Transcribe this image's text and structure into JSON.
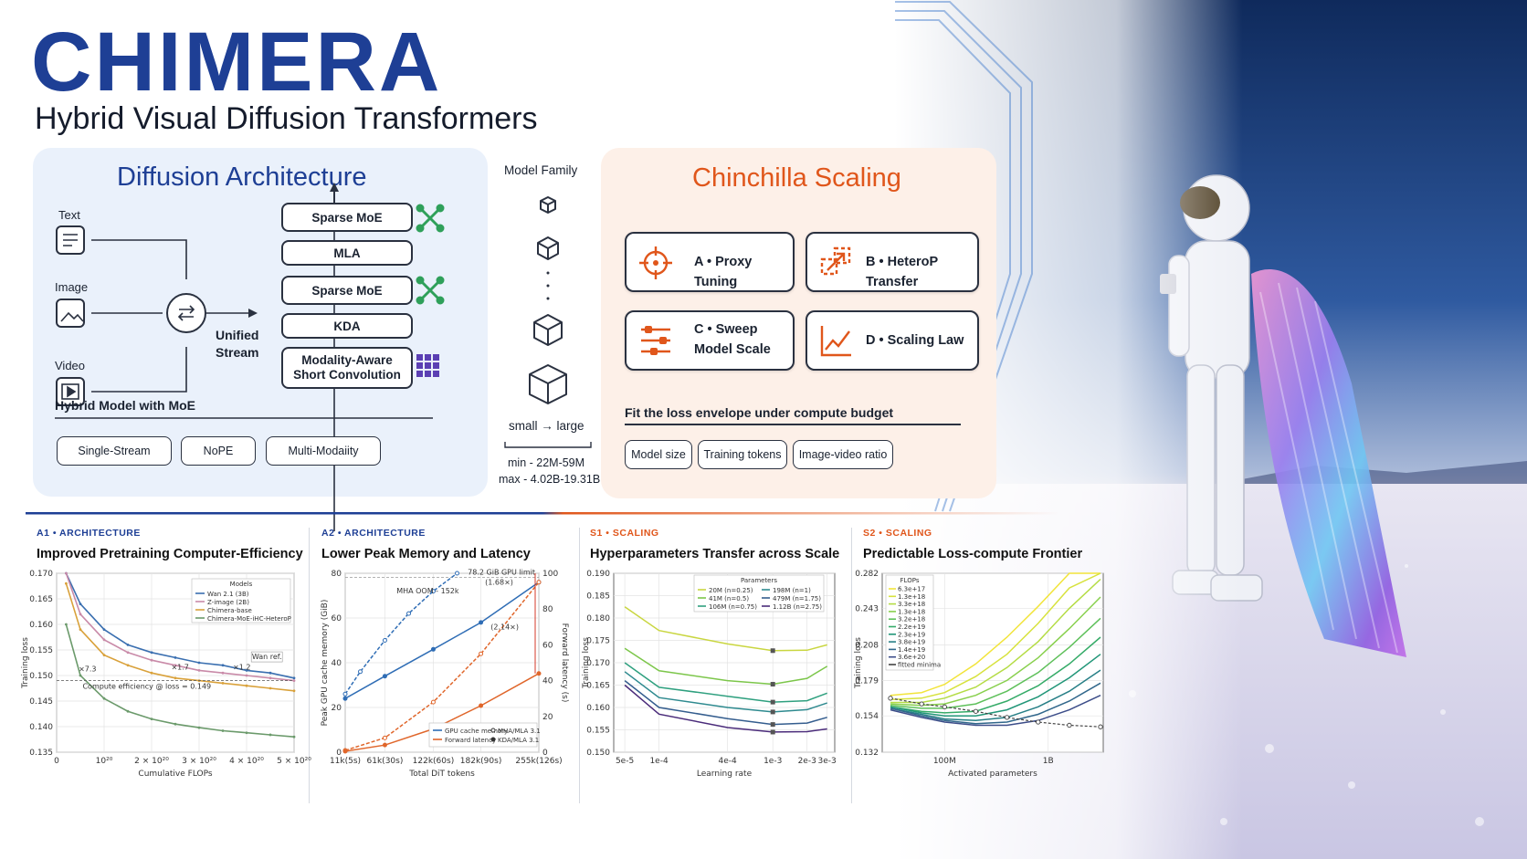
{
  "header": {
    "title": "CHIMERA",
    "subtitle": "Hybrid Visual Diffusion Transformers"
  },
  "architecture": {
    "title": "Diffusion Architecture",
    "inputs": [
      "Text",
      "Image",
      "Video"
    ],
    "stream_label_1": "Unified",
    "stream_label_2": "Stream",
    "blocks": [
      "Sparse MoE",
      "MLA",
      "Sparse MoE",
      "KDA",
      "Modality-Aware",
      "Short Convolution"
    ],
    "caption": "Hybrid Model with MoE",
    "tags": [
      "Single-Stream",
      "NoPE",
      "Multi-Modaiity"
    ]
  },
  "model_family": {
    "label": "Model Family",
    "range": "small → large",
    "min": "min - 22M-59M",
    "max": "max - 4.02B-19.31B"
  },
  "chinchilla": {
    "title": "Chinchilla Scaling",
    "steps": [
      {
        "line1": "A • Proxy Tuning",
        "line2": ""
      },
      {
        "line1": "B • HeteroP Transfer",
        "line2": ""
      },
      {
        "line1": "C • Sweep",
        "line2": "Model Scale"
      },
      {
        "line1": "D • Scaling Law",
        "line2": ""
      }
    ],
    "caption": "Fit the loss envelope under compute budget",
    "tags": [
      "Model size",
      "Training tokens",
      "Image-video ratio"
    ]
  },
  "colors": {
    "brand_blue": "#1e3f95",
    "accent_orange": "#e0561b",
    "card_blue": "#eaf1fb",
    "card_orange": "#fdf0e8"
  },
  "chart_data": [
    {
      "type": "line",
      "tag": "A1 • ARCHITECTURE",
      "title": "Improved Pretraining Computer-Efficiency",
      "xlabel": "Cumulative FLOPs",
      "ylabel": "Training loss",
      "xlim": [
        0,
        5e+20
      ],
      "ylim": [
        0.135,
        0.17
      ],
      "xticks": [
        "0",
        "10²⁰",
        "2 × 10²⁰",
        "3 × 10²⁰",
        "4 × 10²⁰",
        "5 × 10²⁰"
      ],
      "yticks": [
        "0.135",
        "0.140",
        "0.145",
        "0.150",
        "0.155",
        "0.160",
        "0.165",
        "0.170"
      ],
      "legend_title": "Models",
      "legend_position": "top-right",
      "annotations": [
        "×7.3",
        "×1.7",
        "×1.2",
        "Wan ref.",
        "Compute efficiency @ loss = 0.149"
      ],
      "x": [
        2e+19,
        5e+19,
        1e+20,
        1.5e+20,
        2e+20,
        2.5e+20,
        3e+20,
        3.5e+20,
        4e+20,
        4.5e+20,
        5e+20
      ],
      "series": [
        {
          "name": "Wan 2.1 (3B)",
          "color": "#3a6fb0",
          "values": [
            0.17,
            0.164,
            0.159,
            0.156,
            0.1545,
            0.1535,
            0.1525,
            0.152,
            0.151,
            0.1505,
            0.1495
          ]
        },
        {
          "name": "Z-image (2B)",
          "color": "#c98aa8",
          "values": [
            0.17,
            0.162,
            0.157,
            0.1545,
            0.153,
            0.152,
            0.151,
            0.1505,
            0.15,
            0.1495,
            0.149
          ]
        },
        {
          "name": "Chimera-base",
          "color": "#d9a13a",
          "values": [
            0.168,
            0.159,
            0.154,
            0.152,
            0.1505,
            0.1495,
            0.149,
            0.1485,
            0.148,
            0.1475,
            0.147
          ]
        },
        {
          "name": "Chimera-MoE-iHC-HeteroP",
          "color": "#6b9a6b",
          "values": [
            0.16,
            0.15,
            0.1455,
            0.143,
            0.1415,
            0.1405,
            0.1398,
            0.1392,
            0.1388,
            0.1384,
            0.138
          ]
        }
      ]
    },
    {
      "type": "line",
      "tag": "A2 • ARCHITECTURE",
      "title": "Lower Peak Memory and Latency",
      "xlabel": "Total DiT tokens",
      "ylabel": "Peak GPU cache memory (GiB)",
      "ylabel_right": "Forward latency (s)",
      "xticks": [
        "11k(5s)",
        "61k(30s)",
        "122k(60s)",
        "182k(90s)",
        "255k(126s)"
      ],
      "yticks": [
        "0",
        "20",
        "40",
        "60",
        "80"
      ],
      "yticks_right": [
        "0",
        "20",
        "40",
        "60",
        "80",
        "100"
      ],
      "ylim": [
        0,
        80
      ],
      "ylim_right": [
        0,
        100
      ],
      "annotations": [
        "78.2 GiB GPU limit",
        "MHA OOM - 152k",
        "(1.68×)",
        "(2.14×)"
      ],
      "legend": [
        "GPU cache memory",
        "Forward latency",
        "MHA/MLA 3.1",
        "KDA/MLA 3.1"
      ],
      "legend_position": "bottom-right",
      "x": [
        11,
        61,
        122,
        182,
        255
      ],
      "series": [
        {
          "name": "MHA/MLA 3.1 · GPU cache memory",
          "color": "#2f6db5",
          "axis": "left",
          "x": [
            11,
            30,
            61,
            91,
            122,
            152
          ],
          "values": [
            26,
            36,
            50,
            62,
            72,
            80
          ]
        },
        {
          "name": "KDA/MLA 3.1 · GPU cache memory",
          "color": "#2f6db5",
          "axis": "left",
          "x": [
            11,
            61,
            122,
            182,
            255
          ],
          "values": [
            24,
            34,
            46,
            58,
            76
          ]
        },
        {
          "name": "MHA/MLA 3.1 · Forward latency",
          "color": "#e0662b",
          "axis": "right",
          "x": [
            11,
            61,
            122,
            182,
            255
          ],
          "values": [
            1,
            8,
            28,
            55,
            95
          ]
        },
        {
          "name": "KDA/MLA 3.1 · Forward latency",
          "color": "#e0662b",
          "axis": "right",
          "x": [
            11,
            61,
            122,
            182,
            255
          ],
          "values": [
            0.5,
            4,
            13,
            26,
            44
          ]
        }
      ]
    },
    {
      "type": "line",
      "tag": "S1 • SCALING",
      "title": "Hyperparameters Transfer across Scale",
      "xlabel": "Learning rate",
      "ylabel": "Training loss",
      "xticks": [
        "5e-5",
        "1e-4",
        "4e-4",
        "1e-3",
        "2e-3",
        "3e-3"
      ],
      "yticks": [
        "0.150",
        "0.155",
        "0.160",
        "0.165",
        "0.170",
        "0.175",
        "0.180",
        "0.185",
        "0.190"
      ],
      "ylim": [
        0.15,
        0.19
      ],
      "legend_title": "Parameters",
      "legend_position": "top",
      "x": [
        5e-05,
        0.0001,
        0.0004,
        0.001,
        0.002,
        0.003
      ],
      "series": [
        {
          "name": "20M (n=0.25)",
          "color": "#c9d640",
          "values": [
            0.1825,
            0.1772,
            0.1742,
            0.1727,
            0.1728,
            0.174
          ]
        },
        {
          "name": "41M (n=0.5)",
          "color": "#7cc64a",
          "values": [
            0.1732,
            0.1682,
            0.166,
            0.1652,
            0.1665,
            0.1692
          ]
        },
        {
          "name": "106M (n=0.75)",
          "color": "#2fa07f",
          "values": [
            0.17,
            0.1645,
            0.1625,
            0.1612,
            0.1615,
            0.1632
          ]
        },
        {
          "name": "198M (n=1)",
          "color": "#2e8a8f",
          "values": [
            0.168,
            0.1622,
            0.16,
            0.159,
            0.1595,
            0.161
          ]
        },
        {
          "name": "479M (n=1.75)",
          "color": "#345d8e",
          "values": [
            0.166,
            0.16,
            0.1575,
            0.1562,
            0.1565,
            0.1578
          ]
        },
        {
          "name": "1.12B (n=2.75)",
          "color": "#4a2b7a",
          "values": [
            0.165,
            0.1585,
            0.1555,
            0.1545,
            0.1546,
            0.1552
          ]
        }
      ]
    },
    {
      "type": "line",
      "tag": "S2 • SCALING",
      "title": "Predictable Loss-compute Frontier",
      "xlabel": "Activated parameters",
      "ylabel": "Training loss",
      "xticks": [
        "100M",
        "1B"
      ],
      "yticks": [
        "0.132",
        "0.154",
        "0.179",
        "0.208",
        "0.243",
        "0.282"
      ],
      "legend_title": "FLOPs",
      "legend_position": "top-left",
      "legend": [
        "6.3e+17",
        "1.3e+18",
        "3.3e+18",
        "1.3e+18",
        "3.2e+18",
        "2.2e+19",
        "2.3e+19",
        "3.8e+19",
        "1.4e+19",
        "3.6e+20",
        "fitted minima"
      ],
      "x": [
        0.03,
        0.06,
        0.1,
        0.2,
        0.4,
        0.8,
        1.6,
        3.2
      ],
      "series": [
        {
          "name": "6.3e+17",
          "color": "#f2e43a",
          "values": [
            0.168,
            0.17,
            0.176,
            0.192,
            0.215,
            0.245,
            0.282,
            0.282
          ]
        },
        {
          "name": "1.3e+18",
          "color": "#d7e23d",
          "values": [
            0.165,
            0.166,
            0.17,
            0.182,
            0.2,
            0.228,
            0.265,
            0.282
          ]
        },
        {
          "name": "3.3e+18",
          "color": "#b4dc44",
          "values": [
            0.163,
            0.163,
            0.166,
            0.174,
            0.189,
            0.211,
            0.243,
            0.275
          ]
        },
        {
          "name": "1.3e+18",
          "color": "#88d04d",
          "values": [
            0.162,
            0.161,
            0.162,
            0.168,
            0.179,
            0.197,
            0.223,
            0.255
          ]
        },
        {
          "name": "3.2e+18",
          "color": "#5ec05a",
          "values": [
            0.161,
            0.159,
            0.159,
            0.162,
            0.171,
            0.185,
            0.206,
            0.233
          ]
        },
        {
          "name": "2.2e+19",
          "color": "#35ab68",
          "values": [
            0.16,
            0.157,
            0.156,
            0.157,
            0.164,
            0.175,
            0.192,
            0.215
          ]
        },
        {
          "name": "2.3e+19",
          "color": "#219678",
          "values": [
            0.16,
            0.156,
            0.154,
            0.154,
            0.158,
            0.167,
            0.181,
            0.2
          ]
        },
        {
          "name": "3.8e+19",
          "color": "#277f86",
          "values": [
            0.159,
            0.155,
            0.152,
            0.151,
            0.153,
            0.16,
            0.171,
            0.187
          ]
        },
        {
          "name": "1.4e+19",
          "color": "#31678b",
          "values": [
            0.159,
            0.154,
            0.151,
            0.149,
            0.15,
            0.155,
            0.164,
            0.177
          ]
        },
        {
          "name": "3.6e+20",
          "color": "#3c4d89",
          "values": [
            0.158,
            0.153,
            0.15,
            0.148,
            0.148,
            0.151,
            0.158,
            0.168
          ]
        },
        {
          "name": "fitted minima",
          "color": "#444444",
          "values": [
            0.166,
            0.162,
            0.16,
            0.157,
            0.153,
            0.15,
            0.148,
            0.147
          ]
        }
      ]
    }
  ]
}
